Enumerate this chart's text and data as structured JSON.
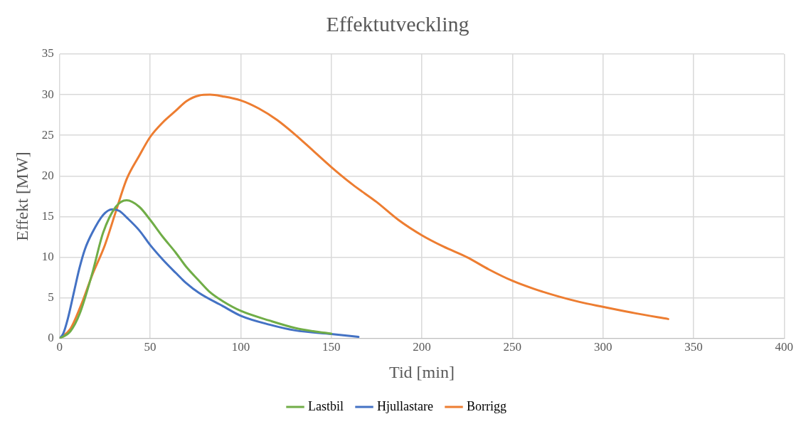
{
  "chart_data": {
    "type": "line",
    "title": "Effektutveckling",
    "xlabel": "Tid [min]",
    "ylabel": "Effekt [MW]",
    "xlim": [
      0,
      400
    ],
    "xticks": [
      0,
      50,
      100,
      150,
      200,
      250,
      300,
      350,
      400
    ],
    "ylim": [
      0,
      35
    ],
    "yticks": [
      0,
      5,
      10,
      15,
      20,
      25,
      30,
      35
    ],
    "grid": true,
    "legend": "bottom",
    "marker": "none",
    "line_style": "solid",
    "series": [
      {
        "name": "Lastbil",
        "color": "#70ad47",
        "x": [
          0,
          6,
          11,
          18,
          24,
          31,
          37,
          44,
          50,
          57,
          64,
          70,
          77,
          83,
          90,
          100,
          116,
          130,
          140,
          150
        ],
        "values": [
          0,
          0.9,
          3,
          8,
          13,
          16.2,
          17,
          16.2,
          14.6,
          12.5,
          10.6,
          8.8,
          7.1,
          5.7,
          4.6,
          3.4,
          2.2,
          1.3,
          0.9,
          0.6
        ]
      },
      {
        "name": "Hjullastare",
        "color": "#4472c4",
        "x": [
          0,
          2,
          4.5,
          8,
          11,
          14,
          18,
          24,
          29,
          33,
          37,
          44,
          50,
          57,
          64,
          70,
          77,
          90,
          100,
          116,
          130,
          150,
          165
        ],
        "values": [
          0,
          0.6,
          2.4,
          5.8,
          8.7,
          11,
          13,
          15.2,
          15.9,
          15.7,
          14.9,
          13.3,
          11.5,
          9.7,
          8.1,
          6.8,
          5.6,
          4,
          2.8,
          1.7,
          1,
          0.55,
          0.2
        ]
      },
      {
        "name": "Borrigg",
        "color": "#ed7d31",
        "x": [
          0,
          6,
          12,
          18,
          25,
          31,
          37,
          44,
          50,
          57,
          64,
          70,
          77,
          83,
          90,
          100,
          110,
          120,
          130,
          140,
          150,
          162,
          175,
          187,
          200,
          212,
          225,
          237,
          250,
          262,
          275,
          287,
          300,
          318,
          336
        ],
        "values": [
          0,
          1.2,
          4.2,
          7.8,
          11.5,
          15.6,
          19.6,
          22.5,
          24.8,
          26.6,
          28,
          29.2,
          29.9,
          30,
          29.8,
          29.3,
          28.3,
          26.9,
          25.1,
          23.1,
          21.1,
          18.9,
          16.8,
          14.6,
          12.7,
          11.3,
          10,
          8.5,
          7.1,
          6.1,
          5.2,
          4.5,
          3.9,
          3.1,
          2.4
        ]
      }
    ]
  }
}
